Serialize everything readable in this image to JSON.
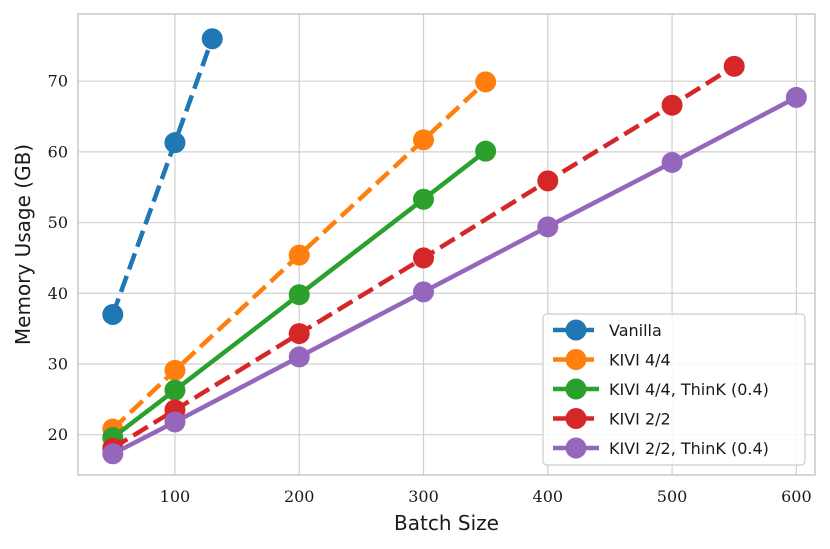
{
  "chart_data": {
    "type": "line",
    "title": "",
    "xlabel": "Batch Size",
    "ylabel": "Memory Usage (GB)",
    "xlim": [
      22,
      615
    ],
    "ylim": [
      14.3,
      79.5
    ],
    "xticks": [
      100,
      200,
      300,
      400,
      500,
      600
    ],
    "yticks": [
      20,
      30,
      40,
      50,
      60,
      70
    ],
    "grid": true,
    "legend_position": "bottom-right",
    "series": [
      {
        "name": "Vanilla",
        "color": "#1f77b4",
        "dash": true,
        "x": [
          50,
          100,
          130
        ],
        "y": [
          37.0,
          61.3,
          76.0
        ]
      },
      {
        "name": "KIVI 4/4",
        "color": "#ff7f0e",
        "dash": true,
        "x": [
          50,
          100,
          200,
          300,
          350
        ],
        "y": [
          20.8,
          29.1,
          45.4,
          61.7,
          69.9
        ]
      },
      {
        "name": "KIVI 4/4, ThinK (0.4)",
        "color": "#2ca02c",
        "dash": false,
        "x": [
          50,
          100,
          200,
          300,
          350
        ],
        "y": [
          19.6,
          26.3,
          39.8,
          53.3,
          60.1
        ]
      },
      {
        "name": "KIVI 2/2",
        "color": "#d62728",
        "dash": true,
        "x": [
          50,
          100,
          200,
          300,
          400,
          500,
          550
        ],
        "y": [
          18.1,
          23.5,
          34.3,
          45.0,
          55.9,
          66.6,
          72.1
        ]
      },
      {
        "name": "KIVI 2/2, ThinK (0.4)",
        "color": "#9467bd",
        "dash": false,
        "x": [
          50,
          100,
          200,
          300,
          400,
          500,
          600
        ],
        "y": [
          17.3,
          21.8,
          31.0,
          40.2,
          49.4,
          58.5,
          67.7
        ]
      }
    ]
  }
}
